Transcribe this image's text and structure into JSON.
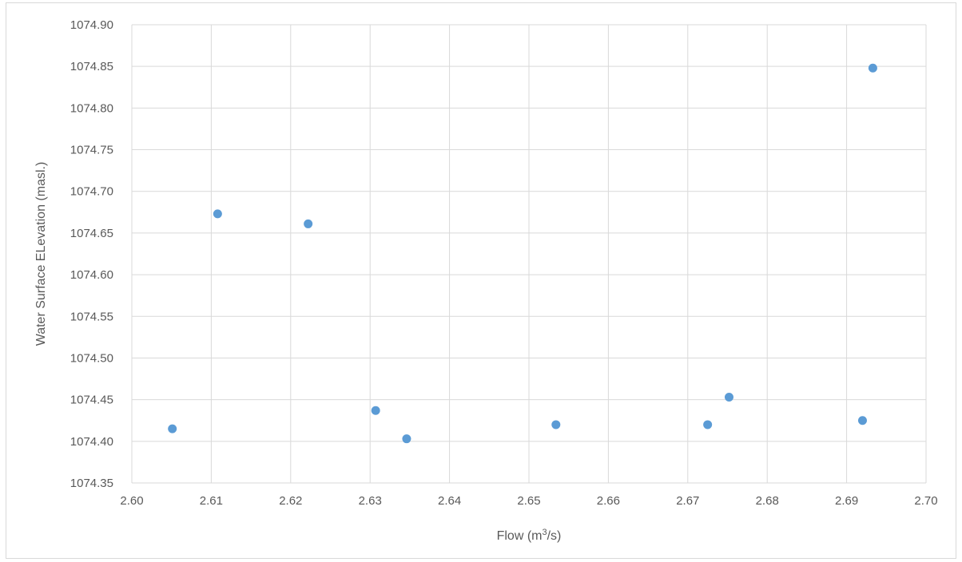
{
  "chart_data": {
    "type": "scatter",
    "title": "",
    "xlabel_main": "Flow (m",
    "xlabel_sup": "3",
    "xlabel_tail": "/s)",
    "ylabel": "Water Surface ELevation (masl.)",
    "xlim": [
      2.6,
      2.7
    ],
    "ylim": [
      1074.35,
      1074.9
    ],
    "x_ticks": [
      "2.60",
      "2.61",
      "2.62",
      "2.63",
      "2.64",
      "2.65",
      "2.66",
      "2.67",
      "2.68",
      "2.69",
      "2.70"
    ],
    "y_ticks": [
      "1074.35",
      "1074.40",
      "1074.45",
      "1074.50",
      "1074.55",
      "1074.60",
      "1074.65",
      "1074.70",
      "1074.75",
      "1074.80",
      "1074.85",
      "1074.90"
    ],
    "grid": true,
    "legend": "none",
    "marker_color": "#5B9BD5",
    "points": [
      {
        "x": 2.6051,
        "y": 1074.415
      },
      {
        "x": 2.6108,
        "y": 1074.673
      },
      {
        "x": 2.6222,
        "y": 1074.661
      },
      {
        "x": 2.6307,
        "y": 1074.437
      },
      {
        "x": 2.6346,
        "y": 1074.403
      },
      {
        "x": 2.6534,
        "y": 1074.42
      },
      {
        "x": 2.6725,
        "y": 1074.42
      },
      {
        "x": 2.6752,
        "y": 1074.453
      },
      {
        "x": 2.692,
        "y": 1074.425
      },
      {
        "x": 2.6933,
        "y": 1074.848
      }
    ]
  }
}
